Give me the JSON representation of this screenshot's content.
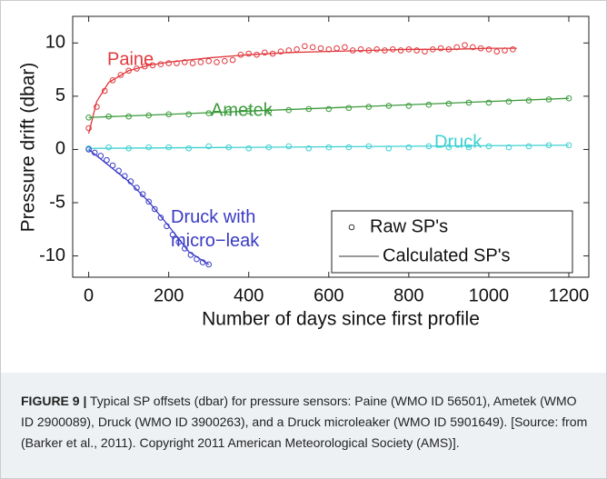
{
  "chart_data": {
    "type": "line",
    "xlabel": "Number of days since first profile",
    "ylabel": "Pressure drift (dbar)",
    "xlim": [
      -40,
      1250
    ],
    "ylim": [
      -12,
      12.5
    ],
    "xticks": [
      0,
      200,
      400,
      600,
      800,
      1000,
      1200
    ],
    "yticks": [
      -10,
      -5,
      0,
      5,
      10
    ],
    "legend_position": "lower right",
    "legend": [
      "Raw SP's",
      "Calculated SP's"
    ],
    "series": [
      {
        "name": "Paine",
        "color": "#e0383c",
        "x": [
          0,
          20,
          40,
          60,
          80,
          100,
          120,
          140,
          160,
          180,
          200,
          220,
          240,
          260,
          280,
          300,
          320,
          340,
          360,
          380,
          400,
          420,
          440,
          460,
          480,
          500,
          520,
          540,
          560,
          580,
          600,
          620,
          640,
          660,
          680,
          700,
          720,
          740,
          760,
          780,
          800,
          820,
          840,
          860,
          880,
          900,
          920,
          940,
          960,
          980,
          1000,
          1020,
          1040,
          1060
        ],
        "values": [
          2.0,
          4.0,
          5.5,
          6.5,
          7.0,
          7.4,
          7.6,
          7.8,
          7.9,
          8.0,
          8.1,
          8.1,
          8.2,
          8.1,
          8.2,
          8.3,
          8.2,
          8.3,
          8.4,
          8.9,
          9.0,
          8.9,
          9.1,
          9.0,
          9.2,
          9.3,
          9.4,
          9.7,
          9.6,
          9.5,
          9.4,
          9.5,
          9.6,
          9.3,
          9.4,
          9.3,
          9.4,
          9.3,
          9.4,
          9.3,
          9.4,
          9.3,
          9.2,
          9.4,
          9.5,
          9.4,
          9.6,
          9.8,
          9.6,
          9.5,
          9.4,
          9.2,
          9.3,
          9.4
        ],
        "fit_x": [
          0,
          20,
          50,
          100,
          150,
          200,
          300,
          400,
          500,
          600,
          700,
          800,
          900,
          1000,
          1070
        ],
        "fit_values": [
          1.5,
          4.5,
          6.3,
          7.4,
          7.9,
          8.2,
          8.6,
          8.9,
          9.1,
          9.2,
          9.3,
          9.4,
          9.4,
          9.5,
          9.5
        ]
      },
      {
        "name": "Ametek",
        "color": "#3b9b3b",
        "x": [
          0,
          50,
          100,
          150,
          200,
          250,
          300,
          350,
          400,
          450,
          500,
          550,
          600,
          650,
          700,
          750,
          800,
          850,
          900,
          950,
          1000,
          1050,
          1100,
          1150,
          1200
        ],
        "values": [
          3.0,
          3.1,
          3.1,
          3.2,
          3.3,
          3.3,
          3.4,
          3.5,
          3.6,
          3.6,
          3.7,
          3.8,
          3.8,
          3.9,
          4.0,
          4.1,
          4.1,
          4.2,
          4.3,
          4.4,
          4.4,
          4.5,
          4.6,
          4.7,
          4.8
        ],
        "fit_x": [
          0,
          1200
        ],
        "fit_values": [
          3.0,
          4.8
        ]
      },
      {
        "name": "Druck",
        "color": "#3fd0d2",
        "x": [
          0,
          50,
          100,
          150,
          200,
          250,
          300,
          350,
          400,
          450,
          500,
          550,
          600,
          650,
          700,
          750,
          800,
          850,
          900,
          950,
          1000,
          1050,
          1100,
          1150,
          1200
        ],
        "values": [
          0.1,
          0.2,
          0.1,
          0.2,
          0.2,
          0.1,
          0.3,
          0.2,
          0.1,
          0.2,
          0.3,
          0.1,
          0.2,
          0.2,
          0.3,
          0.1,
          0.2,
          0.3,
          0.2,
          0.2,
          0.3,
          0.2,
          0.3,
          0.4,
          0.4
        ],
        "fit_x": [
          0,
          1200
        ],
        "fit_values": [
          0.1,
          0.4
        ]
      },
      {
        "name": "Druck with micro−leak",
        "color": "#3a3ac6",
        "x": [
          0,
          15,
          30,
          45,
          60,
          75,
          90,
          105,
          120,
          135,
          150,
          165,
          180,
          195,
          210,
          225,
          240,
          255,
          270,
          285,
          300
        ],
        "values": [
          0,
          -0.3,
          -0.6,
          -1.0,
          -1.5,
          -2.0,
          -2.5,
          -3.0,
          -3.6,
          -4.2,
          -4.9,
          -5.6,
          -6.4,
          -7.2,
          -8.0,
          -8.7,
          -9.3,
          -9.9,
          -10.3,
          -10.6,
          -10.8
        ],
        "fit_x": [
          0,
          50,
          100,
          150,
          200,
          250,
          300
        ],
        "fit_values": [
          0,
          -1.5,
          -3.0,
          -4.9,
          -7.2,
          -9.6,
          -10.8
        ]
      }
    ]
  },
  "caption": {
    "label": "FIGURE 9 |",
    "text": "Typical SP offsets (dbar) for pressure sensors: Paine (WMO ID 56501), Ametek (WMO ID 2900089), Druck (WMO ID 3900263), and a Druck microleaker (WMO ID 5901649). [Source: from (Barker et al., 2011). Copyright 2011 American Meteorological Society (AMS)]."
  }
}
